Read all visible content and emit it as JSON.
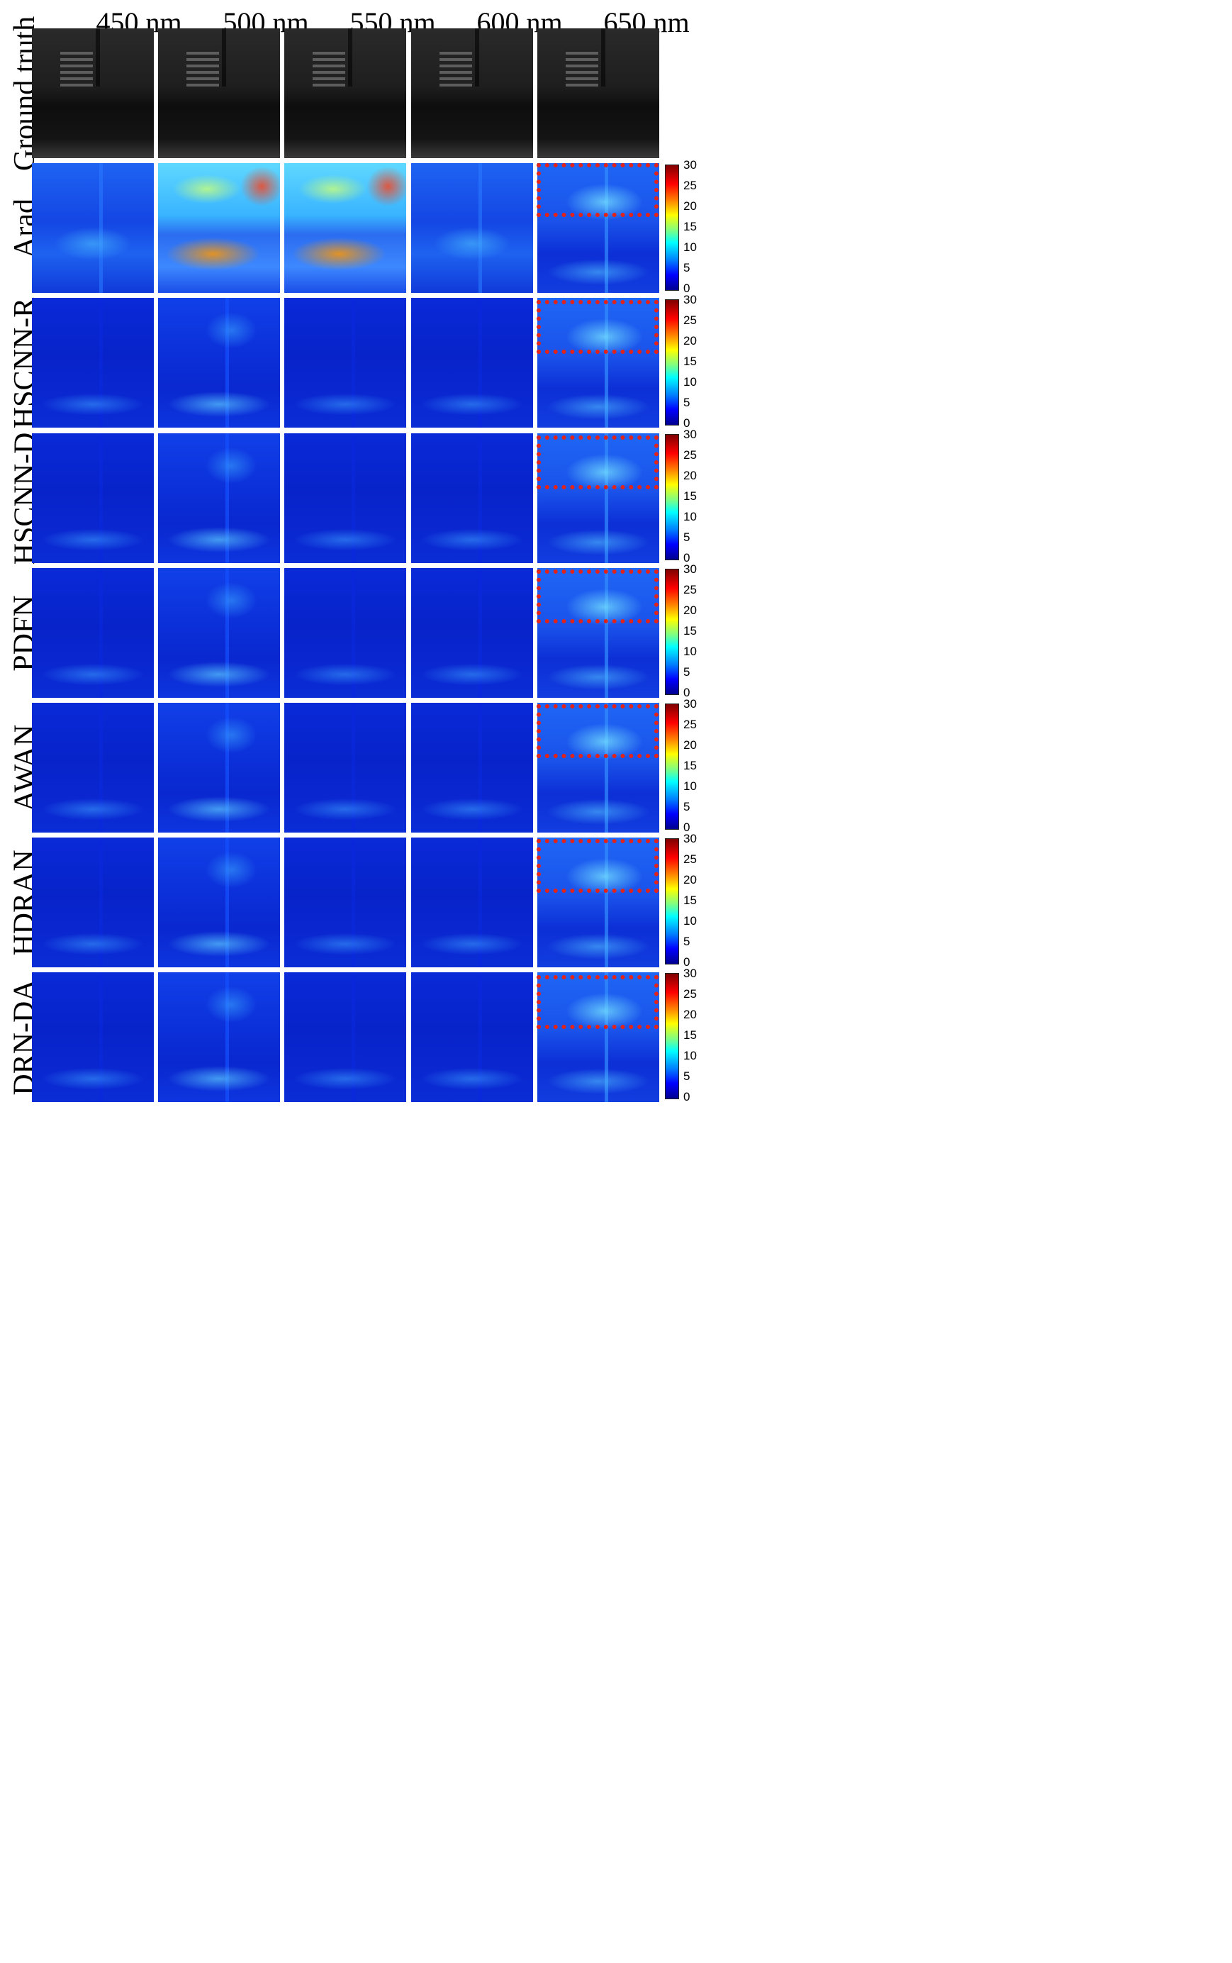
{
  "columns": [
    "450 nm",
    "500 nm",
    "550 nm",
    "600 nm",
    "650 nm"
  ],
  "rows": [
    "Ground truth",
    "Arad",
    "HSCNN-R",
    "HSCNN-D",
    "PDFN",
    "AWAN",
    "HDRAN",
    "DRN-DA"
  ],
  "colorbar_ticks": [
    "30",
    "25",
    "20",
    "15",
    "10",
    "5",
    "0"
  ],
  "colors": {
    "highlight": "#e2231a",
    "colormap": "jet"
  }
}
